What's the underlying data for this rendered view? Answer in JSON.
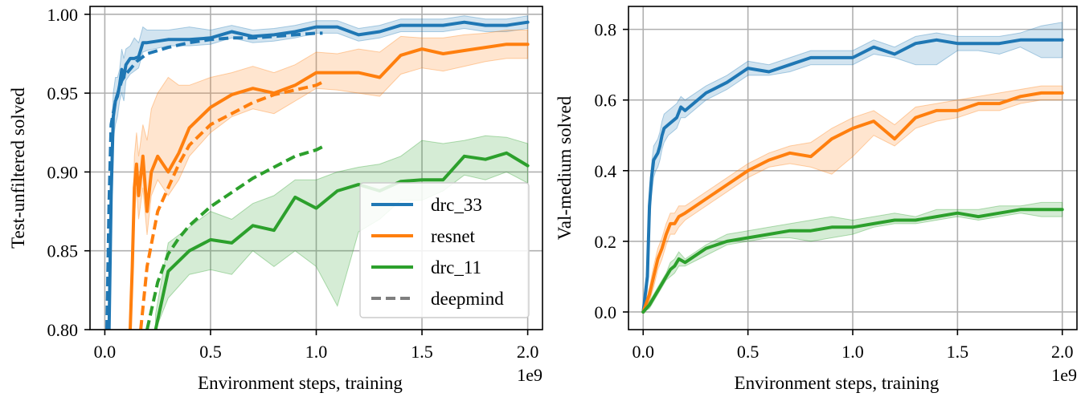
{
  "chart_data": [
    {
      "type": "line",
      "xlabel": "Environment steps, training",
      "ylabel": "Test-unfiltered solved",
      "x_multiplier": "1e9",
      "xlim": [
        -0.07,
        2.07
      ],
      "ylim": [
        0.8,
        1.005
      ],
      "xticks": [
        0.0,
        0.5,
        1.0,
        1.5,
        2.0
      ],
      "xtick_labels": [
        "0.0",
        "0.5",
        "1.0",
        "1.5",
        "2.0"
      ],
      "yticks": [
        0.8,
        0.85,
        0.9,
        0.95,
        1.0
      ],
      "ytick_labels": [
        "0.80",
        "0.85",
        "0.90",
        "0.95",
        "1.00"
      ],
      "grid": true,
      "legend": {
        "position": "lower-right",
        "entries": [
          {
            "label": "drc_33",
            "color": "#1f77b4",
            "style": "solid"
          },
          {
            "label": "resnet",
            "color": "#ff7f0e",
            "style": "solid"
          },
          {
            "label": "drc_11",
            "color": "#2ca02c",
            "style": "solid"
          },
          {
            "label": "deepmind",
            "color": "#7f7f7f",
            "style": "dashed"
          }
        ]
      },
      "series": [
        {
          "name": "drc_33",
          "color": "#1f77b4",
          "style": "solid",
          "x": [
            0.02,
            0.03,
            0.04,
            0.05,
            0.06,
            0.07,
            0.08,
            0.09,
            0.1,
            0.12,
            0.14,
            0.16,
            0.18,
            0.2,
            0.3,
            0.4,
            0.5,
            0.6,
            0.7,
            0.8,
            0.9,
            1.0,
            1.1,
            1.2,
            1.3,
            1.4,
            1.5,
            1.6,
            1.7,
            1.8,
            1.9,
            2.0
          ],
          "y": [
            0.8,
            0.885,
            0.935,
            0.945,
            0.948,
            0.955,
            0.965,
            0.96,
            0.968,
            0.972,
            0.972,
            0.973,
            0.982,
            0.982,
            0.984,
            0.984,
            0.985,
            0.989,
            0.986,
            0.987,
            0.989,
            0.992,
            0.992,
            0.987,
            0.989,
            0.993,
            0.993,
            0.993,
            0.995,
            0.993,
            0.993,
            0.995
          ],
          "band_low": [
            0.8,
            0.86,
            0.92,
            0.93,
            0.935,
            0.945,
            0.95,
            0.945,
            0.958,
            0.962,
            0.964,
            0.966,
            0.976,
            0.977,
            0.98,
            0.98,
            0.981,
            0.985,
            0.982,
            0.983,
            0.985,
            0.988,
            0.988,
            0.983,
            0.985,
            0.989,
            0.989,
            0.989,
            0.991,
            0.989,
            0.989,
            0.991
          ],
          "band_high": [
            0.82,
            0.91,
            0.95,
            0.96,
            0.96,
            0.965,
            0.978,
            0.972,
            0.978,
            0.98,
            0.985,
            0.982,
            0.992,
            0.99,
            0.99,
            0.992,
            0.99,
            0.993,
            0.99,
            0.991,
            0.993,
            0.996,
            0.996,
            0.991,
            0.993,
            0.997,
            0.997,
            0.997,
            0.999,
            0.997,
            0.997,
            0.999
          ]
        },
        {
          "name": "resnet",
          "color": "#ff7f0e",
          "style": "solid",
          "x": [
            0.12,
            0.13,
            0.14,
            0.15,
            0.16,
            0.18,
            0.2,
            0.22,
            0.25,
            0.3,
            0.35,
            0.4,
            0.5,
            0.6,
            0.7,
            0.8,
            0.9,
            1.0,
            1.1,
            1.2,
            1.3,
            1.4,
            1.5,
            1.6,
            1.7,
            1.8,
            1.9,
            2.0
          ],
          "y": [
            0.8,
            0.84,
            0.89,
            0.905,
            0.885,
            0.91,
            0.875,
            0.9,
            0.91,
            0.9,
            0.912,
            0.928,
            0.941,
            0.949,
            0.953,
            0.95,
            0.955,
            0.963,
            0.963,
            0.963,
            0.96,
            0.974,
            0.978,
            0.975,
            0.977,
            0.979,
            0.981,
            0.981
          ],
          "band_low": [
            0.8,
            0.82,
            0.87,
            0.89,
            0.87,
            0.89,
            0.86,
            0.885,
            0.895,
            0.885,
            0.895,
            0.91,
            0.925,
            0.935,
            0.94,
            0.937,
            0.945,
            0.953,
            0.952,
            0.95,
            0.948,
            0.962,
            0.966,
            0.964,
            0.967,
            0.97,
            0.972,
            0.972
          ],
          "band_high": [
            0.81,
            0.86,
            0.91,
            0.925,
            0.91,
            0.93,
            0.92,
            0.94,
            0.95,
            0.96,
            0.955,
            0.955,
            0.96,
            0.963,
            0.967,
            0.963,
            0.968,
            0.976,
            0.975,
            0.978,
            0.976,
            0.986,
            0.985,
            0.985,
            0.987,
            0.988,
            0.99,
            0.99
          ]
        },
        {
          "name": "drc_11",
          "color": "#2ca02c",
          "style": "solid",
          "x": [
            0.24,
            0.3,
            0.4,
            0.5,
            0.6,
            0.7,
            0.8,
            0.9,
            1.0,
            1.1,
            1.2,
            1.3,
            1.4,
            1.5,
            1.6,
            1.7,
            1.8,
            1.9,
            2.0
          ],
          "y": [
            0.8,
            0.837,
            0.85,
            0.857,
            0.855,
            0.866,
            0.863,
            0.884,
            0.877,
            0.888,
            0.892,
            0.888,
            0.894,
            0.895,
            0.895,
            0.91,
            0.908,
            0.912,
            0.904
          ],
          "band_low": [
            0.8,
            0.82,
            0.835,
            0.838,
            0.835,
            0.85,
            0.84,
            0.85,
            0.84,
            0.815,
            0.862,
            0.87,
            0.882,
            0.882,
            0.888,
            0.898,
            0.895,
            0.9,
            0.893
          ],
          "band_high": [
            0.81,
            0.855,
            0.865,
            0.875,
            0.87,
            0.88,
            0.885,
            0.895,
            0.895,
            0.9,
            0.903,
            0.905,
            0.91,
            0.92,
            0.918,
            0.92,
            0.923,
            0.922,
            0.918
          ]
        },
        {
          "name": "drc_33 (deepmind)",
          "color": "#1f77b4",
          "style": "dashed",
          "x": [
            0.01,
            0.02,
            0.03,
            0.05,
            0.08,
            0.1,
            0.15,
            0.2,
            0.3,
            0.4,
            0.5,
            0.6,
            0.7,
            0.8,
            0.9,
            1.0,
            1.03
          ],
          "y": [
            0.8,
            0.88,
            0.93,
            0.945,
            0.958,
            0.962,
            0.97,
            0.975,
            0.979,
            0.982,
            0.984,
            0.985,
            0.985,
            0.986,
            0.987,
            0.988,
            0.988
          ]
        },
        {
          "name": "resnet (deepmind)",
          "color": "#ff7f0e",
          "style": "dashed",
          "x": [
            0.17,
            0.2,
            0.25,
            0.3,
            0.35,
            0.4,
            0.5,
            0.6,
            0.7,
            0.8,
            0.9,
            1.0,
            1.03
          ],
          "y": [
            0.8,
            0.84,
            0.875,
            0.89,
            0.905,
            0.917,
            0.93,
            0.937,
            0.944,
            0.949,
            0.952,
            0.955,
            0.957
          ]
        },
        {
          "name": "drc_11 (deepmind)",
          "color": "#2ca02c",
          "style": "dashed",
          "x": [
            0.2,
            0.25,
            0.3,
            0.35,
            0.4,
            0.45,
            0.5,
            0.6,
            0.7,
            0.8,
            0.9,
            1.0,
            1.03
          ],
          "y": [
            0.8,
            0.83,
            0.848,
            0.858,
            0.866,
            0.872,
            0.878,
            0.887,
            0.896,
            0.903,
            0.91,
            0.914,
            0.916
          ]
        }
      ]
    },
    {
      "type": "line",
      "xlabel": "Environment steps, training",
      "ylabel": "Val-medium solved",
      "x_multiplier": "1e9",
      "xlim": [
        -0.07,
        2.07
      ],
      "ylim": [
        -0.05,
        0.865
      ],
      "xticks": [
        0.0,
        0.5,
        1.0,
        1.5,
        2.0
      ],
      "xtick_labels": [
        "0.0",
        "0.5",
        "1.0",
        "1.5",
        "2.0"
      ],
      "yticks": [
        0.0,
        0.2,
        0.4,
        0.6,
        0.8
      ],
      "ytick_labels": [
        "0.0",
        "0.2",
        "0.4",
        "0.6",
        "0.8"
      ],
      "grid": true,
      "series": [
        {
          "name": "drc_33",
          "color": "#1f77b4",
          "style": "solid",
          "x": [
            0.0,
            0.02,
            0.03,
            0.04,
            0.05,
            0.06,
            0.07,
            0.08,
            0.09,
            0.1,
            0.12,
            0.14,
            0.16,
            0.18,
            0.2,
            0.3,
            0.4,
            0.5,
            0.6,
            0.7,
            0.8,
            0.9,
            1.0,
            1.1,
            1.2,
            1.3,
            1.4,
            1.5,
            1.6,
            1.7,
            1.8,
            1.9,
            2.0
          ],
          "y": [
            0.0,
            0.1,
            0.3,
            0.38,
            0.43,
            0.44,
            0.45,
            0.47,
            0.5,
            0.52,
            0.53,
            0.54,
            0.55,
            0.58,
            0.57,
            0.62,
            0.65,
            0.69,
            0.68,
            0.7,
            0.72,
            0.72,
            0.72,
            0.75,
            0.73,
            0.76,
            0.77,
            0.76,
            0.76,
            0.76,
            0.77,
            0.77,
            0.77
          ],
          "band_low": [
            0.0,
            0.06,
            0.24,
            0.33,
            0.38,
            0.4,
            0.41,
            0.43,
            0.46,
            0.48,
            0.5,
            0.51,
            0.52,
            0.55,
            0.55,
            0.6,
            0.63,
            0.67,
            0.67,
            0.68,
            0.7,
            0.7,
            0.7,
            0.73,
            0.72,
            0.7,
            0.7,
            0.74,
            0.74,
            0.73,
            0.75,
            0.72,
            0.72
          ],
          "band_high": [
            0.0,
            0.14,
            0.35,
            0.42,
            0.47,
            0.48,
            0.49,
            0.51,
            0.54,
            0.56,
            0.57,
            0.58,
            0.59,
            0.61,
            0.6,
            0.64,
            0.67,
            0.71,
            0.7,
            0.72,
            0.74,
            0.74,
            0.74,
            0.77,
            0.75,
            0.78,
            0.79,
            0.78,
            0.78,
            0.78,
            0.79,
            0.81,
            0.82
          ]
        },
        {
          "name": "resnet",
          "color": "#ff7f0e",
          "style": "solid",
          "x": [
            0.0,
            0.03,
            0.05,
            0.07,
            0.09,
            0.11,
            0.13,
            0.15,
            0.17,
            0.2,
            0.3,
            0.4,
            0.5,
            0.6,
            0.7,
            0.8,
            0.9,
            1.0,
            1.1,
            1.2,
            1.3,
            1.4,
            1.5,
            1.6,
            1.7,
            1.8,
            1.9,
            2.0
          ],
          "y": [
            0.0,
            0.05,
            0.1,
            0.15,
            0.18,
            0.22,
            0.25,
            0.25,
            0.27,
            0.28,
            0.32,
            0.36,
            0.4,
            0.43,
            0.45,
            0.44,
            0.49,
            0.52,
            0.54,
            0.49,
            0.55,
            0.57,
            0.57,
            0.59,
            0.59,
            0.61,
            0.62,
            0.62
          ],
          "band_low": [
            0.0,
            0.03,
            0.07,
            0.12,
            0.15,
            0.19,
            0.22,
            0.22,
            0.24,
            0.26,
            0.3,
            0.34,
            0.38,
            0.41,
            0.42,
            0.41,
            0.39,
            0.44,
            0.5,
            0.47,
            0.52,
            0.54,
            0.55,
            0.57,
            0.57,
            0.59,
            0.6,
            0.6
          ],
          "band_high": [
            0.0,
            0.07,
            0.13,
            0.18,
            0.21,
            0.25,
            0.28,
            0.28,
            0.3,
            0.3,
            0.34,
            0.38,
            0.42,
            0.45,
            0.47,
            0.48,
            0.52,
            0.55,
            0.57,
            0.53,
            0.58,
            0.59,
            0.6,
            0.61,
            0.62,
            0.63,
            0.64,
            0.64
          ]
        },
        {
          "name": "drc_11",
          "color": "#2ca02c",
          "style": "solid",
          "x": [
            0.0,
            0.03,
            0.05,
            0.07,
            0.09,
            0.11,
            0.13,
            0.15,
            0.17,
            0.2,
            0.3,
            0.4,
            0.5,
            0.6,
            0.7,
            0.8,
            0.9,
            1.0,
            1.1,
            1.2,
            1.3,
            1.4,
            1.5,
            1.6,
            1.7,
            1.8,
            1.9,
            2.0
          ],
          "y": [
            0.0,
            0.02,
            0.04,
            0.06,
            0.08,
            0.1,
            0.12,
            0.13,
            0.15,
            0.14,
            0.18,
            0.2,
            0.21,
            0.22,
            0.23,
            0.23,
            0.24,
            0.24,
            0.25,
            0.26,
            0.26,
            0.27,
            0.28,
            0.27,
            0.28,
            0.29,
            0.29,
            0.29
          ],
          "band_low": [
            0.0,
            0.01,
            0.03,
            0.05,
            0.07,
            0.09,
            0.1,
            0.11,
            0.13,
            0.13,
            0.16,
            0.19,
            0.2,
            0.21,
            0.21,
            0.2,
            0.21,
            0.22,
            0.24,
            0.25,
            0.25,
            0.26,
            0.27,
            0.26,
            0.27,
            0.28,
            0.27,
            0.27
          ],
          "band_high": [
            0.0,
            0.03,
            0.05,
            0.07,
            0.09,
            0.11,
            0.14,
            0.15,
            0.17,
            0.15,
            0.19,
            0.22,
            0.23,
            0.24,
            0.25,
            0.26,
            0.27,
            0.26,
            0.27,
            0.28,
            0.27,
            0.29,
            0.29,
            0.29,
            0.3,
            0.3,
            0.31,
            0.31
          ]
        }
      ]
    }
  ]
}
